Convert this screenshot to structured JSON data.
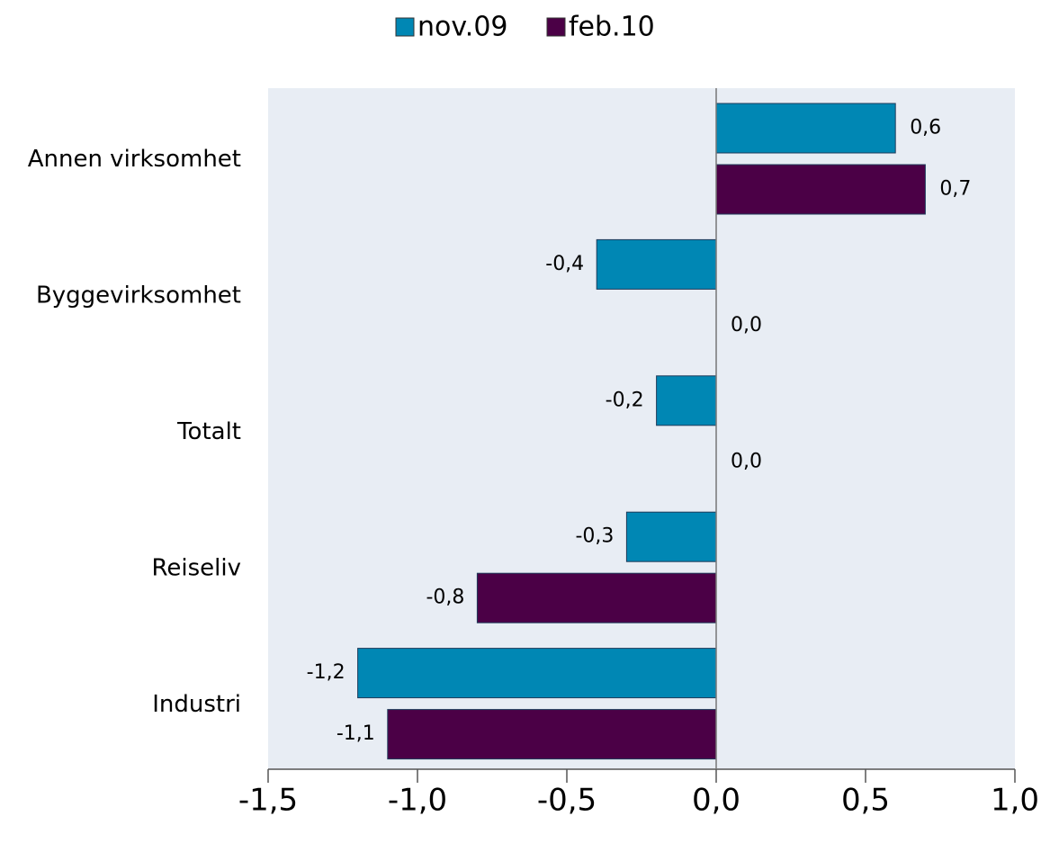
{
  "chart_data": {
    "type": "hbar",
    "categories": [
      "Annen virksomhet",
      "Byggevirksomhet",
      "Totalt",
      "Reiseliv",
      "Industri"
    ],
    "series": [
      {
        "name": "nov.09",
        "color": "#0087b4",
        "values": [
          0.6,
          -0.4,
          -0.2,
          -0.3,
          -1.2
        ],
        "value_labels": [
          "0,6",
          "-0,4",
          "-0,2",
          "-0,3",
          "-1,2"
        ]
      },
      {
        "name": "feb.10",
        "color": "#4b0046",
        "values": [
          0.7,
          0.0,
          0.0,
          -0.8,
          -1.1
        ],
        "value_labels": [
          "0,7",
          "0,0",
          "0,0",
          "-0,8",
          "-1,1"
        ]
      }
    ],
    "xlim": [
      -1.5,
      1.0
    ],
    "xticks": [
      {
        "value": -1.5,
        "label": "-1,5"
      },
      {
        "value": -1.0,
        "label": "-1,0"
      },
      {
        "value": -0.5,
        "label": "-0,5"
      },
      {
        "value": 0.0,
        "label": "0,0"
      },
      {
        "value": 0.5,
        "label": "0,5"
      },
      {
        "value": 1.0,
        "label": "1,0"
      }
    ],
    "legend": "top"
  }
}
